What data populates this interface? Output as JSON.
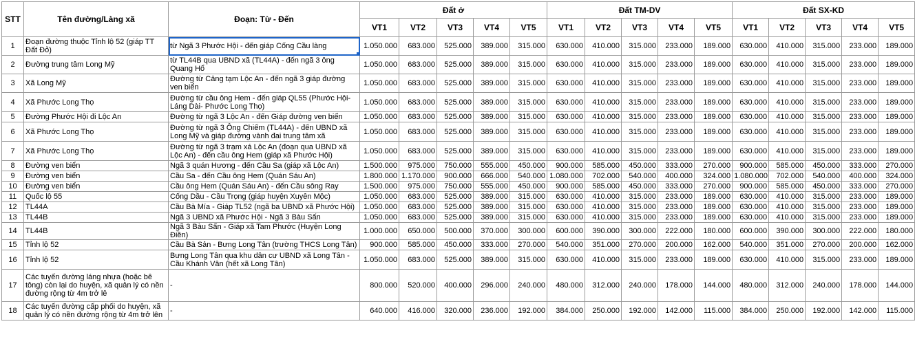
{
  "headers": {
    "stt": "STT",
    "name": "Tên đường/Làng xã",
    "section": "Đoạn: Từ - Đến",
    "groups": [
      "Đất ở",
      "Đất TM-DV",
      "Đất SX-KD"
    ],
    "levels": [
      "VT1",
      "VT2",
      "VT3",
      "VT4",
      "VT5"
    ]
  },
  "rows": [
    {
      "stt": "1",
      "name": "Đoạn đường thuộc Tỉnh lộ 52 (giáp TT Đất Đỏ)",
      "section": "từ Ngã 3 Phước Hội - đến giáp Cống Cầu làng",
      "dat_o": [
        "1.050.000",
        "683.000",
        "525.000",
        "389.000",
        "315.000"
      ],
      "tm_dv": [
        "630.000",
        "410.000",
        "315.000",
        "233.000",
        "189.000"
      ],
      "sx_kd": [
        "630.000",
        "410.000",
        "315.000",
        "233.000",
        "189.000"
      ]
    },
    {
      "stt": "2",
      "name": "Đường trung tâm Long Mỹ",
      "section": "từ TL44B qua UBND xã (TL44A) - đến ngã 3 ông Quang Hổ",
      "dat_o": [
        "1.050.000",
        "683.000",
        "525.000",
        "389.000",
        "315.000"
      ],
      "tm_dv": [
        "630.000",
        "410.000",
        "315.000",
        "233.000",
        "189.000"
      ],
      "sx_kd": [
        "630.000",
        "410.000",
        "315.000",
        "233.000",
        "189.000"
      ]
    },
    {
      "stt": "3",
      "name": "Xã Long Mỹ",
      "section": "Đường từ Cảng tạm Lộc An - đến ngã 3 giáp đường ven biển",
      "dat_o": [
        "1.050.000",
        "683.000",
        "525.000",
        "389.000",
        "315.000"
      ],
      "tm_dv": [
        "630.000",
        "410.000",
        "315.000",
        "233.000",
        "189.000"
      ],
      "sx_kd": [
        "630.000",
        "410.000",
        "315.000",
        "233.000",
        "189.000"
      ]
    },
    {
      "stt": "4",
      "name": "Xã Phước Long Thọ",
      "section": "Đường từ cầu ông Hem - đến giáp QL55 (Phước Hội-Láng Dài- Phước Long Thọ)",
      "dat_o": [
        "1.050.000",
        "683.000",
        "525.000",
        "389.000",
        "315.000"
      ],
      "tm_dv": [
        "630.000",
        "410.000",
        "315.000",
        "233.000",
        "189.000"
      ],
      "sx_kd": [
        "630.000",
        "410.000",
        "315.000",
        "233.000",
        "189.000"
      ]
    },
    {
      "stt": "5",
      "name": "Đường Phước Hội đi Lộc An",
      "section": "Đường từ ngã 3 Lộc An - đến Giáp đường ven biển",
      "dat_o": [
        "1.050.000",
        "683.000",
        "525.000",
        "389.000",
        "315.000"
      ],
      "tm_dv": [
        "630.000",
        "410.000",
        "315.000",
        "233.000",
        "189.000"
      ],
      "sx_kd": [
        "630.000",
        "410.000",
        "315.000",
        "233.000",
        "189.000"
      ]
    },
    {
      "stt": "6",
      "name": "Xã Phước Long Thọ",
      "section": "Đường từ ngã 3 Ông Chiếm (TL44A) - đến UBND xã Long Mỹ và giáp đường vành đai trung tâm xã",
      "dat_o": [
        "1.050.000",
        "683.000",
        "525.000",
        "389.000",
        "315.000"
      ],
      "tm_dv": [
        "630.000",
        "410.000",
        "315.000",
        "233.000",
        "189.000"
      ],
      "sx_kd": [
        "630.000",
        "410.000",
        "315.000",
        "233.000",
        "189.000"
      ]
    },
    {
      "stt": "7",
      "name": "Xã Phước Long Thọ",
      "section": "Đường từ ngã 3 trạm xá Lộc An (đoạn qua UBND xã Lộc An) - đến cầu ông Hem (giáp xã Phước Hội)",
      "dat_o": [
        "1.050.000",
        "683.000",
        "525.000",
        "389.000",
        "315.000"
      ],
      "tm_dv": [
        "630.000",
        "410.000",
        "315.000",
        "233.000",
        "189.000"
      ],
      "sx_kd": [
        "630.000",
        "410.000",
        "315.000",
        "233.000",
        "189.000"
      ]
    },
    {
      "stt": "8",
      "name": "Đường ven biển",
      "section": "Ngã 3 quán Hương - đến Cầu Sa (giáp xã Lộc An)",
      "dat_o": [
        "1.500.000",
        "975.000",
        "750.000",
        "555.000",
        "450.000"
      ],
      "tm_dv": [
        "900.000",
        "585.000",
        "450.000",
        "333.000",
        "270.000"
      ],
      "sx_kd": [
        "900.000",
        "585.000",
        "450.000",
        "333.000",
        "270.000"
      ]
    },
    {
      "stt": "9",
      "name": "Đường ven biển",
      "section": "Cầu Sa - đến Cầu ông Hem (Quán Sáu An)",
      "dat_o": [
        "1.800.000",
        "1.170.000",
        "900.000",
        "666.000",
        "540.000"
      ],
      "tm_dv": [
        "1.080.000",
        "702.000",
        "540.000",
        "400.000",
        "324.000"
      ],
      "sx_kd": [
        "1.080.000",
        "702.000",
        "540.000",
        "400.000",
        "324.000"
      ]
    },
    {
      "stt": "10",
      "name": "Đường ven biển",
      "section": "Cầu ông Hem (Quán Sáu An) - đến Cầu sông Ray",
      "dat_o": [
        "1.500.000",
        "975.000",
        "750.000",
        "555.000",
        "450.000"
      ],
      "tm_dv": [
        "900.000",
        "585.000",
        "450.000",
        "333.000",
        "270.000"
      ],
      "sx_kd": [
        "900.000",
        "585.000",
        "450.000",
        "333.000",
        "270.000"
      ]
    },
    {
      "stt": "11",
      "name": "Quốc lộ 55",
      "section": "Cống Dầu - Cầu Trọng (giáp huyện Xuyên Mộc)",
      "dat_o": [
        "1.050.000",
        "683.000",
        "525.000",
        "389.000",
        "315.000"
      ],
      "tm_dv": [
        "630.000",
        "410.000",
        "315.000",
        "233.000",
        "189.000"
      ],
      "sx_kd": [
        "630.000",
        "410.000",
        "315.000",
        "233.000",
        "189.000"
      ]
    },
    {
      "stt": "12",
      "name": "TL44A",
      "section": "Cầu Bà Mía - Giáp TL52 (ngã ba UBND xã Phước Hội)",
      "dat_o": [
        "1.050.000",
        "683.000",
        "525.000",
        "389.000",
        "315.000"
      ],
      "tm_dv": [
        "630.000",
        "410.000",
        "315.000",
        "233.000",
        "189.000"
      ],
      "sx_kd": [
        "630.000",
        "410.000",
        "315.000",
        "233.000",
        "189.000"
      ]
    },
    {
      "stt": "13",
      "name": "TL44B",
      "section": "Ngã 3 UBND xã Phước Hội - Ngã 3 Bàu Sấn",
      "dat_o": [
        "1.050.000",
        "683.000",
        "525.000",
        "389.000",
        "315.000"
      ],
      "tm_dv": [
        "630.000",
        "410.000",
        "315.000",
        "233.000",
        "189.000"
      ],
      "sx_kd": [
        "630.000",
        "410.000",
        "315.000",
        "233.000",
        "189.000"
      ]
    },
    {
      "stt": "14",
      "name": "TL44B",
      "section": "Ngã 3 Bàu Sấn - Giáp xã Tam Phước (Huyện Long Điền)",
      "dat_o": [
        "1.000.000",
        "650.000",
        "500.000",
        "370.000",
        "300.000"
      ],
      "tm_dv": [
        "600.000",
        "390.000",
        "300.000",
        "222.000",
        "180.000"
      ],
      "sx_kd": [
        "600.000",
        "390.000",
        "300.000",
        "222.000",
        "180.000"
      ]
    },
    {
      "stt": "15",
      "name": "Tỉnh lộ 52",
      "section": "Cầu Bà Sản - Bưng Long Tân (trường THCS Long Tân)",
      "dat_o": [
        "900.000",
        "585.000",
        "450.000",
        "333.000",
        "270.000"
      ],
      "tm_dv": [
        "540.000",
        "351.000",
        "270.000",
        "200.000",
        "162.000"
      ],
      "sx_kd": [
        "540.000",
        "351.000",
        "270.000",
        "200.000",
        "162.000"
      ]
    },
    {
      "stt": "16",
      "name": "Tỉnh lộ 52",
      "section": "Bưng Long Tân qua khu dân cư UBND xã Long Tân - Cầu Khánh Vân (hết xã Long Tân)",
      "dat_o": [
        "1.050.000",
        "683.000",
        "525.000",
        "389.000",
        "315.000"
      ],
      "tm_dv": [
        "630.000",
        "410.000",
        "315.000",
        "233.000",
        "189.000"
      ],
      "sx_kd": [
        "630.000",
        "410.000",
        "315.000",
        "233.000",
        "189.000"
      ]
    },
    {
      "stt": "17",
      "name": "Các tuyến đường láng nhựa (hoặc bê tông) còn lại do huyện, xã quản lý có nền đường rộng từ 4m trở lê",
      "section": "-",
      "dat_o": [
        "800.000",
        "520.000",
        "400.000",
        "296.000",
        "240.000"
      ],
      "tm_dv": [
        "480.000",
        "312.000",
        "240.000",
        "178.000",
        "144.000"
      ],
      "sx_kd": [
        "480.000",
        "312.000",
        "240.000",
        "178.000",
        "144.000"
      ]
    },
    {
      "stt": "18",
      "name": "Các tuyến đường cấp phối do huyện, xã quản lý có nền đường rộng từ 4m trở lên",
      "section": "-",
      "dat_o": [
        "640.000",
        "416.000",
        "320.000",
        "236.000",
        "192.000"
      ],
      "tm_dv": [
        "384.000",
        "250.000",
        "192.000",
        "142.000",
        "115.000"
      ],
      "sx_kd": [
        "384.000",
        "250.000",
        "192.000",
        "142.000",
        "115.000"
      ]
    }
  ],
  "colors": {
    "grid": "#9a9a9a",
    "selection": "#1e64c8"
  }
}
